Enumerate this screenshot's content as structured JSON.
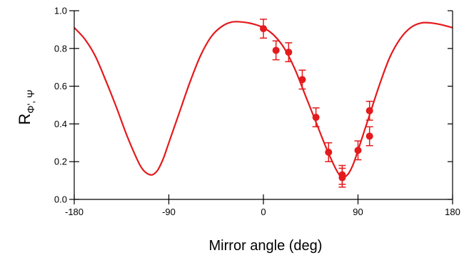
{
  "chart_data": {
    "type": "scatter",
    "title": "",
    "xlabel": "Mirror angle (deg)",
    "ylabel": {
      "main": "R",
      "subscript": "Φ', Ψ"
    },
    "xlim": [
      -180,
      180
    ],
    "ylim": [
      0.0,
      1.0
    ],
    "x_ticks": [
      -180,
      -90,
      0,
      90,
      180
    ],
    "x_tick_labels": [
      "-180",
      "-90",
      "0",
      "90",
      "180"
    ],
    "y_ticks": [
      0.0,
      0.2,
      0.4,
      0.6,
      0.8,
      1.0
    ],
    "y_tick_labels": [
      "0.0",
      "0.2",
      "0.4",
      "0.6",
      "0.8",
      "1.0"
    ],
    "grid": false,
    "legend": "none",
    "color": "#e41a1c",
    "series": [
      {
        "kind": "line",
        "x": [
          -180,
          -170,
          -160,
          -150,
          -140,
          -130,
          -120,
          -115,
          -110,
          -106,
          -103,
          -100,
          -95,
          -90,
          -80,
          -70,
          -60,
          -50,
          -40,
          -30,
          -20,
          -10,
          0,
          10,
          20,
          30,
          40,
          50,
          60,
          70,
          75,
          80,
          85,
          90,
          100,
          110,
          120,
          130,
          140,
          150,
          160,
          170,
          180
        ],
        "y": [
          0.91,
          0.85,
          0.76,
          0.63,
          0.49,
          0.34,
          0.21,
          0.16,
          0.135,
          0.13,
          0.14,
          0.16,
          0.22,
          0.3,
          0.46,
          0.62,
          0.76,
          0.86,
          0.915,
          0.94,
          0.94,
          0.93,
          0.91,
          0.87,
          0.8,
          0.69,
          0.55,
          0.41,
          0.27,
          0.15,
          0.12,
          0.13,
          0.18,
          0.26,
          0.43,
          0.6,
          0.75,
          0.85,
          0.91,
          0.935,
          0.935,
          0.925,
          0.91
        ]
      },
      {
        "kind": "points",
        "x": [
          0,
          12,
          24,
          37,
          50,
          62,
          75,
          75,
          90,
          101,
          101
        ],
        "y": [
          0.905,
          0.79,
          0.78,
          0.635,
          0.435,
          0.25,
          0.13,
          0.115,
          0.26,
          0.47,
          0.335
        ],
        "err": [
          0.05,
          0.05,
          0.05,
          0.05,
          0.05,
          0.05,
          0.05,
          0.05,
          0.05,
          0.05,
          0.05
        ]
      }
    ]
  }
}
